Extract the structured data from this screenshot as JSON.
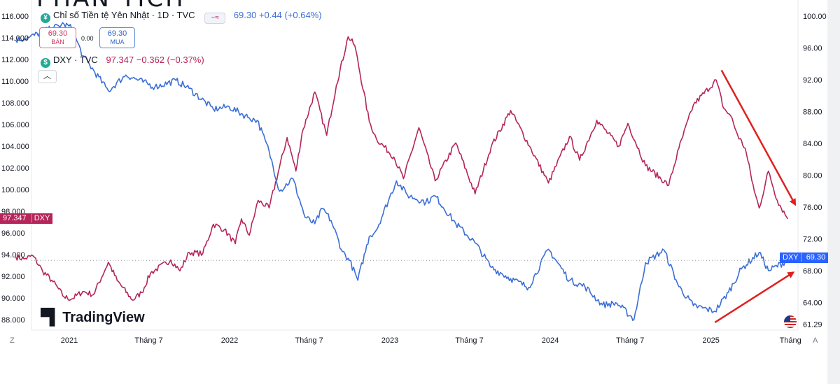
{
  "header_fragment": "PHÂN TÍCH",
  "legend": {
    "main": {
      "icon_glyph": "¥",
      "icon_color": "#26a69a",
      "title": "Chỉ số Tiền tệ Yên Nhật · 1D · TVC",
      "value": "69.30 +0.44 (+0.64%)"
    },
    "sell_box": {
      "price": "69.30",
      "label": "BÁN"
    },
    "spread": "0.00",
    "buy_box": {
      "price": "69.30",
      "label": "MUA"
    },
    "compare": {
      "icon_glyph": "$",
      "icon_color": "#22ab94",
      "title": "DXY · TVC",
      "value": "97.347 −0.362 (−0.37%)"
    },
    "collapse_icon": "chevron-up-icon"
  },
  "watermark": "TradingView",
  "corner_left": "Z",
  "corner_right": "A",
  "flag_icon": "us-flag-icon",
  "colors": {
    "dxy": "#b5255a",
    "jpy": "#3b6fd6",
    "arrow": "#e02020",
    "grid": "#f0f3fa"
  },
  "chart_data": {
    "type": "line",
    "x_tick_labels": [
      "2021",
      "Tháng 7",
      "2022",
      "Tháng 7",
      "2023",
      "Tháng 7",
      "2024",
      "Tháng 7",
      "2025",
      "Tháng"
    ],
    "y_left_ticks": [
      "116.000",
      "114.000",
      "112.000",
      "110.000",
      "108.000",
      "106.000",
      "104.000",
      "102.000",
      "100.000",
      "98.000",
      "96.000",
      "94.000",
      "92.000",
      "90.000",
      "88.000"
    ],
    "y_right_ticks": [
      "100.00",
      "96.00",
      "92.00",
      "88.00",
      "84.00",
      "80.00",
      "76.00",
      "72.00",
      "68.00",
      "64.00",
      "61.29"
    ],
    "ylim_left": [
      87.8,
      116.3
    ],
    "series": [
      {
        "name": "DXY",
        "axis": "left",
        "color": "#b5255a",
        "last_label": "97.347",
        "tag": "DXY",
        "points": [
          [
            "2020-09-01",
            93.8
          ],
          [
            "2020-09-20",
            93.6
          ],
          [
            "2020-10-10",
            93.9
          ],
          [
            "2020-11-01",
            92.5
          ],
          [
            "2020-11-25",
            91.5
          ],
          [
            "2020-12-20",
            90.1
          ],
          [
            "2021-01-06",
            89.9
          ],
          [
            "2021-02-01",
            90.6
          ],
          [
            "2021-02-25",
            90.3
          ],
          [
            "2021-03-31",
            93.3
          ],
          [
            "2021-04-20",
            91.6
          ],
          [
            "2021-05-25",
            89.8
          ],
          [
            "2021-06-15",
            90.5
          ],
          [
            "2021-07-05",
            92.3
          ],
          [
            "2021-08-20",
            93.5
          ],
          [
            "2021-09-10",
            92.5
          ],
          [
            "2021-10-01",
            94.2
          ],
          [
            "2021-11-01",
            94.1
          ],
          [
            "2021-11-25",
            96.8
          ],
          [
            "2021-12-20",
            96.3
          ],
          [
            "2022-01-14",
            95.0
          ],
          [
            "2022-01-28",
            97.3
          ],
          [
            "2022-02-15",
            95.8
          ],
          [
            "2022-03-07",
            99.0
          ],
          [
            "2022-04-01",
            98.3
          ],
          [
            "2022-05-12",
            104.8
          ],
          [
            "2022-06-01",
            101.7
          ],
          [
            "2022-06-15",
            105.2
          ],
          [
            "2022-07-14",
            109.0
          ],
          [
            "2022-08-10",
            105.0
          ],
          [
            "2022-09-01",
            109.6
          ],
          [
            "2022-09-28",
            114.1
          ],
          [
            "2022-10-13",
            113.3
          ],
          [
            "2022-11-15",
            106.3
          ],
          [
            "2022-12-01",
            104.7
          ],
          [
            "2023-01-10",
            103.0
          ],
          [
            "2023-02-01",
            101.0
          ],
          [
            "2023-03-08",
            105.7
          ],
          [
            "2023-04-14",
            100.8
          ],
          [
            "2023-05-31",
            104.3
          ],
          [
            "2023-07-14",
            99.6
          ],
          [
            "2023-08-20",
            104.0
          ],
          [
            "2023-10-03",
            107.3
          ],
          [
            "2023-11-15",
            104.0
          ],
          [
            "2023-12-28",
            100.6
          ],
          [
            "2024-02-14",
            104.9
          ],
          [
            "2024-03-08",
            102.7
          ],
          [
            "2024-04-16",
            106.4
          ],
          [
            "2024-06-05",
            104.0
          ],
          [
            "2024-06-26",
            106.1
          ],
          [
            "2024-08-05",
            102.2
          ],
          [
            "2024-09-27",
            100.4
          ],
          [
            "2024-10-20",
            103.8
          ],
          [
            "2024-11-22",
            107.8
          ],
          [
            "2025-01-13",
            110.1
          ],
          [
            "2025-01-30",
            107.5
          ],
          [
            "2025-02-15",
            106.8
          ],
          [
            "2025-03-03",
            105.0
          ],
          [
            "2025-03-20",
            103.8
          ],
          [
            "2025-04-10",
            99.8
          ],
          [
            "2025-04-21",
            98.3
          ],
          [
            "2025-05-12",
            101.7
          ],
          [
            "2025-06-01",
            99.0
          ],
          [
            "2025-06-25",
            97.3
          ]
        ]
      },
      {
        "name": "Chỉ số Tiền tệ Yên Nhật",
        "axis": "right",
        "color": "#3b6fd6",
        "last_label": "69.30",
        "tag": "DXY",
        "points": [
          [
            "2020-09-01",
            97.0
          ],
          [
            "2020-10-01",
            97.3
          ],
          [
            "2020-11-01",
            98.0
          ],
          [
            "2020-12-20",
            99.0
          ],
          [
            "2021-01-06",
            98.5
          ],
          [
            "2021-02-01",
            95.0
          ],
          [
            "2021-03-31",
            90.6
          ],
          [
            "2021-05-10",
            92.6
          ],
          [
            "2021-07-15",
            91.1
          ],
          [
            "2021-09-01",
            91.9
          ],
          [
            "2021-10-01",
            90.9
          ],
          [
            "2021-11-25",
            88.3
          ],
          [
            "2021-12-31",
            88.6
          ],
          [
            "2022-02-15",
            87.2
          ],
          [
            "2022-03-05",
            86.9
          ],
          [
            "2022-04-01",
            83.0
          ],
          [
            "2022-04-25",
            78.0
          ],
          [
            "2022-05-25",
            79.6
          ],
          [
            "2022-06-22",
            74.7
          ],
          [
            "2022-07-14",
            73.9
          ],
          [
            "2022-08-01",
            75.8
          ],
          [
            "2022-08-20",
            74.3
          ],
          [
            "2022-09-15",
            70.4
          ],
          [
            "2022-10-01",
            69.3
          ],
          [
            "2022-10-20",
            66.8
          ],
          [
            "2022-11-15",
            72.3
          ],
          [
            "2022-12-01",
            73.1
          ],
          [
            "2023-01-16",
            79.3
          ],
          [
            "2023-02-10",
            77.5
          ],
          [
            "2023-03-24",
            76.6
          ],
          [
            "2023-04-14",
            77.4
          ],
          [
            "2023-05-31",
            73.9
          ],
          [
            "2023-07-14",
            71.5
          ],
          [
            "2023-08-20",
            68.4
          ],
          [
            "2023-10-03",
            67.0
          ],
          [
            "2023-11-13",
            65.9
          ],
          [
            "2023-12-28",
            70.7
          ],
          [
            "2024-02-14",
            66.8
          ],
          [
            "2024-03-20",
            66.0
          ],
          [
            "2024-04-29",
            63.7
          ],
          [
            "2024-06-01",
            63.9
          ],
          [
            "2024-07-10",
            61.9
          ],
          [
            "2024-08-05",
            69.0
          ],
          [
            "2024-09-16",
            70.6
          ],
          [
            "2024-10-20",
            66.0
          ],
          [
            "2024-11-22",
            63.6
          ],
          [
            "2025-01-10",
            62.9
          ],
          [
            "2025-02-10",
            65.3
          ],
          [
            "2025-03-11",
            68.2
          ],
          [
            "2025-04-21",
            70.3
          ],
          [
            "2025-05-12",
            68.0
          ],
          [
            "2025-06-25",
            69.3
          ]
        ]
      }
    ],
    "guideline": {
      "value": 69.3,
      "axis": "right",
      "style": "dotted"
    },
    "annotations": [
      {
        "type": "arrow",
        "color": "#e02020",
        "from": [
          "2025-01-25",
          93.2
        ],
        "to": [
          "2025-07-12",
          76.3
        ],
        "axis": "right"
      },
      {
        "type": "arrow",
        "color": "#e02020",
        "from": [
          "2025-01-10",
          61.5
        ],
        "to": [
          "2025-07-08",
          67.8
        ],
        "axis": "right"
      }
    ],
    "grid": false
  }
}
